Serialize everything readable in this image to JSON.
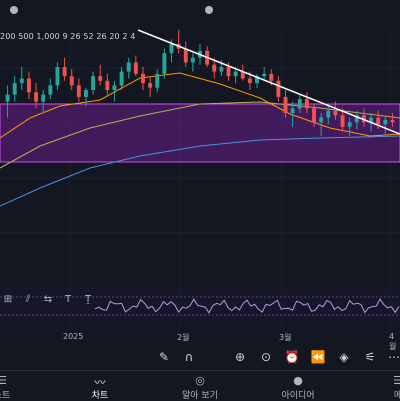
{
  "indicator": {
    "params": "200 500 1,000 9 26 52 26 20 2 4"
  },
  "drawing_tools": [
    "ruler-icon",
    "parallel-channel-icon",
    "arrow-range-icon",
    "text-tool-icon",
    "text-anchor-icon"
  ],
  "date_axis": [
    "2025",
    "2월",
    "3월",
    "4월"
  ],
  "bottom_tools": [
    {
      "icon": "brush-icon",
      "glyph": "✎"
    },
    {
      "icon": "magnet-icon",
      "glyph": "∩"
    },
    {
      "icon": "add-icon",
      "glyph": "⊕"
    },
    {
      "icon": "target-icon",
      "glyph": "⊙"
    },
    {
      "icon": "alarm-icon",
      "glyph": "⏰"
    },
    {
      "icon": "replay-icon",
      "glyph": "⏪"
    },
    {
      "icon": "layers-icon",
      "glyph": "◈"
    },
    {
      "icon": "settings-sliders-icon",
      "glyph": "⚟"
    },
    {
      "icon": "more-icon",
      "glyph": "⋯"
    }
  ],
  "nav": [
    {
      "label": "워치리스트",
      "display": "스트",
      "icon": "watchlist-icon",
      "active": false
    },
    {
      "label": "차트",
      "display": "차트",
      "icon": "chart-icon",
      "active": true
    },
    {
      "label": "알아 보기",
      "display": "알아 보기",
      "icon": "explore-icon",
      "active": false
    },
    {
      "label": "아이디어",
      "display": "아이디어",
      "icon": "ideas-icon",
      "active": false
    },
    {
      "label": "메뉴",
      "display": "메",
      "icon": "menu-icon",
      "active": false
    }
  ],
  "colors": {
    "background": "#131722",
    "up": "#26a69a",
    "down": "#ef5350",
    "zone": "#7b1fa2",
    "zone_border": "#d44de6",
    "trendline": "#ffffff",
    "ma_orange": "#ff9800",
    "ma_olive": "#b5b34a",
    "ma_blue": "#4a90d9",
    "oscillator": "#b39ddb"
  },
  "chart_data": {
    "type": "candlestick",
    "title": "",
    "xlabel": "",
    "ylabel": "",
    "x_ticks": [
      "2025",
      "2월",
      "3월",
      "4월"
    ],
    "grid": true,
    "annotations": [
      "descending trendline",
      "purple horizontal zone",
      "moving averages"
    ],
    "candles_relative": [
      [
        0.55,
        0.62,
        0.48,
        0.58
      ],
      [
        0.58,
        0.66,
        0.55,
        0.63
      ],
      [
        0.63,
        0.7,
        0.6,
        0.65
      ],
      [
        0.65,
        0.68,
        0.56,
        0.59
      ],
      [
        0.59,
        0.63,
        0.52,
        0.55
      ],
      [
        0.55,
        0.6,
        0.5,
        0.58
      ],
      [
        0.58,
        0.65,
        0.56,
        0.62
      ],
      [
        0.62,
        0.72,
        0.6,
        0.7
      ],
      [
        0.7,
        0.74,
        0.64,
        0.66
      ],
      [
        0.66,
        0.69,
        0.6,
        0.62
      ],
      [
        0.62,
        0.65,
        0.55,
        0.57
      ],
      [
        0.57,
        0.61,
        0.53,
        0.6
      ],
      [
        0.6,
        0.68,
        0.58,
        0.66
      ],
      [
        0.66,
        0.71,
        0.62,
        0.64
      ],
      [
        0.64,
        0.67,
        0.58,
        0.6
      ],
      [
        0.6,
        0.64,
        0.55,
        0.62
      ],
      [
        0.62,
        0.7,
        0.6,
        0.68
      ],
      [
        0.68,
        0.74,
        0.65,
        0.72
      ],
      [
        0.72,
        0.75,
        0.66,
        0.67
      ],
      [
        0.67,
        0.7,
        0.6,
        0.63
      ],
      [
        0.63,
        0.66,
        0.57,
        0.61
      ],
      [
        0.61,
        0.69,
        0.59,
        0.67
      ],
      [
        0.67,
        0.78,
        0.65,
        0.76
      ],
      [
        0.76,
        0.82,
        0.72,
        0.8
      ],
      [
        0.8,
        0.86,
        0.76,
        0.78
      ],
      [
        0.78,
        0.81,
        0.7,
        0.72
      ],
      [
        0.72,
        0.76,
        0.68,
        0.74
      ],
      [
        0.74,
        0.8,
        0.71,
        0.77
      ],
      [
        0.77,
        0.79,
        0.7,
        0.71
      ],
      [
        0.71,
        0.74,
        0.65,
        0.68
      ],
      [
        0.68,
        0.73,
        0.66,
        0.7
      ],
      [
        0.7,
        0.72,
        0.64,
        0.66
      ],
      [
        0.66,
        0.7,
        0.63,
        0.68
      ],
      [
        0.68,
        0.71,
        0.64,
        0.65
      ],
      [
        0.65,
        0.68,
        0.6,
        0.63
      ],
      [
        0.63,
        0.67,
        0.61,
        0.66
      ],
      [
        0.66,
        0.7,
        0.64,
        0.67
      ],
      [
        0.67,
        0.69,
        0.62,
        0.64
      ],
      [
        0.64,
        0.66,
        0.55,
        0.57
      ],
      [
        0.57,
        0.6,
        0.48,
        0.5
      ],
      [
        0.5,
        0.55,
        0.44,
        0.52
      ],
      [
        0.52,
        0.58,
        0.5,
        0.56
      ],
      [
        0.56,
        0.59,
        0.5,
        0.52
      ],
      [
        0.52,
        0.54,
        0.44,
        0.46
      ],
      [
        0.46,
        0.5,
        0.4,
        0.48
      ],
      [
        0.48,
        0.53,
        0.45,
        0.51
      ],
      [
        0.51,
        0.55,
        0.47,
        0.49
      ],
      [
        0.49,
        0.52,
        0.42,
        0.44
      ],
      [
        0.44,
        0.48,
        0.4,
        0.46
      ],
      [
        0.46,
        0.51,
        0.43,
        0.49
      ],
      [
        0.49,
        0.52,
        0.44,
        0.46
      ],
      [
        0.46,
        0.5,
        0.42,
        0.48
      ],
      [
        0.48,
        0.51,
        0.43,
        0.45
      ],
      [
        0.45,
        0.49,
        0.41,
        0.47
      ],
      [
        0.47,
        0.5,
        0.44,
        0.46
      ]
    ]
  }
}
